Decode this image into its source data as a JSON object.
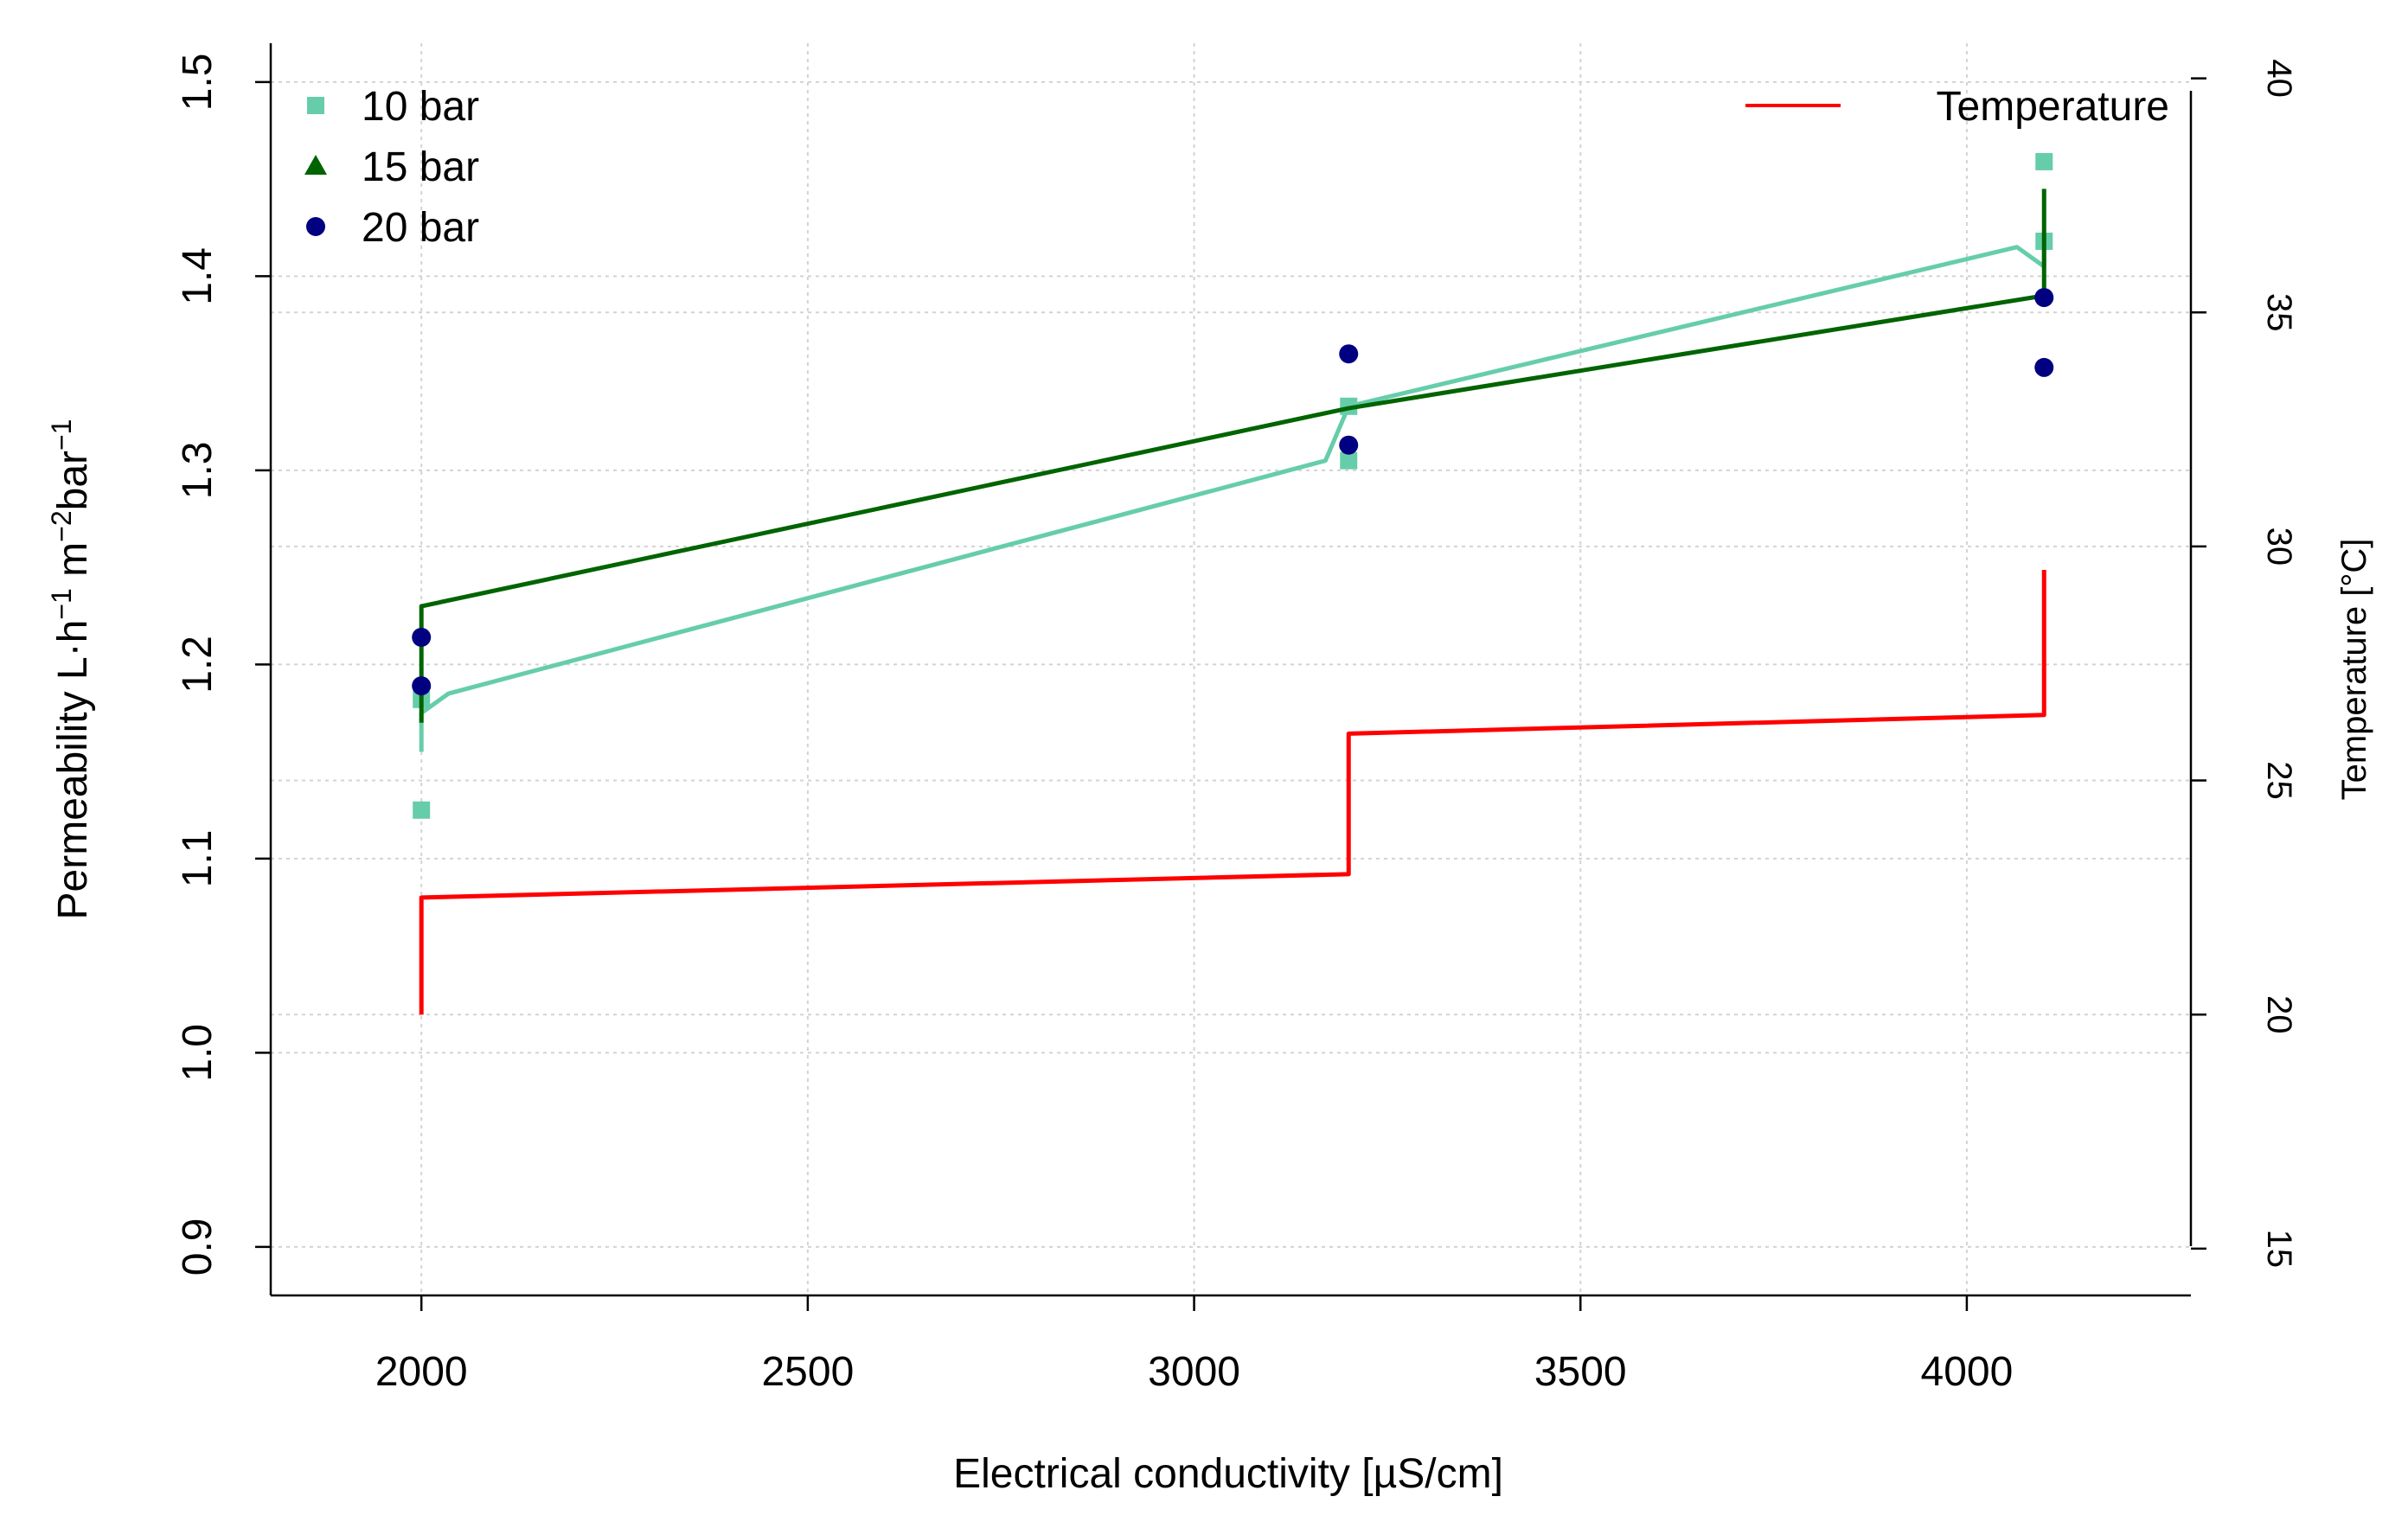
{
  "chart_data": {
    "type": "line",
    "title": "",
    "xlabel": "Electrical conductivity [µS/cm]",
    "ylabel": {
      "base": "Permeability L·h",
      "parts": [
        {
          "text": "Permeability L·h",
          "sup": false
        },
        {
          "text": "−1",
          "sup": true
        },
        {
          "text": " m",
          "sup": false
        },
        {
          "text": "−2",
          "sup": true
        },
        {
          "text": "bar",
          "sup": false
        },
        {
          "text": "−1",
          "sup": true
        }
      ]
    },
    "y2label": "Temperature [°C]",
    "xlim": [
      1805,
      4290
    ],
    "ylim": [
      0.875,
      1.52
    ],
    "y2lim": [
      14.0,
      40.75
    ],
    "x_ticks": [
      2000,
      2500,
      3000,
      3500,
      4000
    ],
    "y_ticks": [
      0.9,
      1.0,
      1.1,
      1.2,
      1.3,
      1.4,
      1.5
    ],
    "y_tick_labels": [
      "0.9",
      "1.0",
      "1.1",
      "1.2",
      "1.3",
      "1.4",
      "1.5"
    ],
    "y2_ticks": [
      15,
      20,
      25,
      30,
      35,
      40
    ],
    "grid": true,
    "legend_left": [
      {
        "label": "10 bar",
        "color": "#66CDAA",
        "marker": "square"
      },
      {
        "label": "15 bar",
        "color": "#006400",
        "marker": "triangle"
      },
      {
        "label": "20 bar",
        "color": "#000080",
        "marker": "circle"
      }
    ],
    "legend_right": [
      {
        "label": "Temperature",
        "color": "#FF0000",
        "marker": "line"
      }
    ],
    "series": [
      {
        "name": "10 bar",
        "color": "#66CDAA",
        "points": [
          [
            2000,
            1.182
          ],
          [
            2000,
            1.125
          ],
          [
            3200,
            1.333
          ],
          [
            3200,
            1.305
          ],
          [
            4100,
            1.459
          ],
          [
            4100,
            1.418
          ]
        ],
        "line": [
          [
            2000,
            1.155
          ],
          [
            2000,
            1.175
          ],
          [
            2035,
            1.185
          ],
          [
            3170,
            1.305
          ],
          [
            3200,
            1.333
          ],
          [
            4065,
            1.415
          ],
          [
            4100,
            1.405
          ],
          [
            4100,
            1.418
          ]
        ]
      },
      {
        "name": "15 bar",
        "color": "#006400",
        "points": [],
        "line": [
          [
            2000,
            1.17
          ],
          [
            2000,
            1.23
          ],
          [
            3200,
            1.332
          ],
          [
            4100,
            1.39
          ],
          [
            4100,
            1.445
          ]
        ]
      },
      {
        "name": "20 bar",
        "color": "#000080",
        "points": [
          [
            2000,
            1.214
          ],
          [
            2000,
            1.189
          ],
          [
            3200,
            1.36
          ],
          [
            3200,
            1.313
          ],
          [
            4100,
            1.389
          ],
          [
            4100,
            1.353
          ]
        ],
        "line": []
      },
      {
        "name": "Temperature",
        "color": "#FF0000",
        "axis": "right",
        "points": [],
        "line": [
          [
            2000,
            20.0
          ],
          [
            2000,
            22.5
          ],
          [
            3200,
            23.0
          ],
          [
            3200,
            26.0
          ],
          [
            4100,
            26.4
          ],
          [
            4100,
            29.5
          ]
        ]
      }
    ]
  }
}
